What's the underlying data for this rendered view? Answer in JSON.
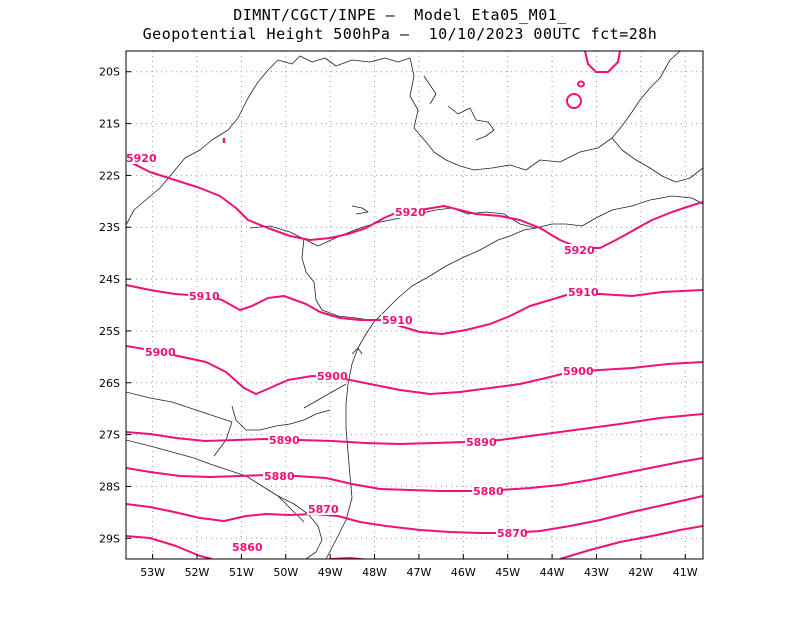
{
  "header": {
    "line1": "DIMNT/CGCT/INPE –  Model Eta05_M01_",
    "line2": "Geopotential Height 500hPa –  10/10/2023 00UTC fct=28h"
  },
  "map": {
    "lon_range": [
      -53.6,
      -40.6
    ],
    "lat_range": [
      -29.4,
      -19.6
    ],
    "x_ticks": [
      "53W",
      "52W",
      "51W",
      "50W",
      "49W",
      "48W",
      "47W",
      "46W",
      "45W",
      "44W",
      "43W",
      "42W",
      "41W"
    ],
    "y_ticks": [
      "20S",
      "21S",
      "22S",
      "23S",
      "24S",
      "25S",
      "26S",
      "27S",
      "28S",
      "29S"
    ],
    "grid": "dotted",
    "contour_color": "#ee1177",
    "coast_color": "#000000",
    "contour_labels": [
      "5920",
      "5920",
      "5920",
      "5910",
      "5910",
      "5910",
      "5900",
      "5900",
      "5900",
      "5890",
      "5890",
      "5880",
      "5880",
      "5870",
      "5870",
      "5860"
    ]
  }
}
